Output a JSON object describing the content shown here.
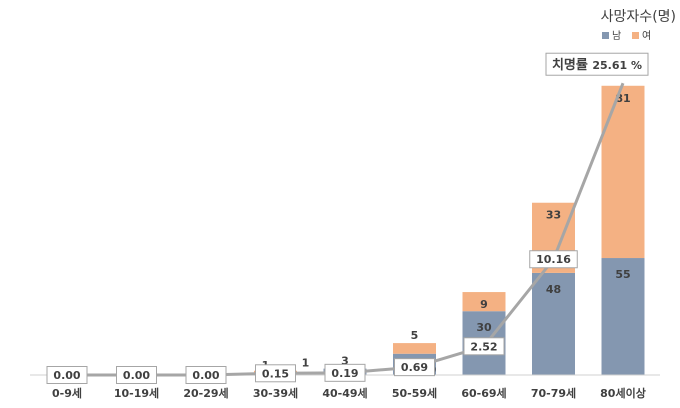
{
  "chart_data": {
    "type": "bar",
    "stacked": true,
    "categories": [
      "0-9세",
      "10-19세",
      "20-29세",
      "30-39세",
      "40-49세",
      "50-59세",
      "60-69세",
      "70-79세",
      "80세이상"
    ],
    "ylabel": "사망자수(명)",
    "legend_placement": "top-right",
    "grid": false,
    "series": [
      {
        "name": "남",
        "color": "#8497b0",
        "values": [
          0,
          0,
          0,
          1,
          3,
          10,
          30,
          48,
          55
        ],
        "labels": [
          "",
          "",
          "",
          "1",
          "3",
          "10",
          "30",
          "48",
          "55"
        ]
      },
      {
        "name": "여",
        "color": "#f4b183",
        "values": [
          0,
          0,
          0,
          1,
          0,
          5,
          9,
          33,
          81
        ],
        "labels": [
          "",
          "",
          "",
          "1",
          "",
          "5",
          "9",
          "33",
          "81"
        ]
      }
    ],
    "line": {
      "name": "치명률",
      "unit": "%",
      "color": "#a6a6a6",
      "values": [
        0.0,
        0.0,
        0.0,
        0.15,
        0.19,
        0.69,
        2.52,
        10.16,
        25.61
      ],
      "labels": [
        "0.00",
        "0.00",
        "0.00",
        "0.15",
        "0.19",
        "0.69",
        "2.52",
        "10.16",
        "25.61 %"
      ],
      "last_label_prefix": "치명률"
    },
    "ylim": [
      0,
      150
    ],
    "y2lim": [
      0,
      28
    ]
  }
}
